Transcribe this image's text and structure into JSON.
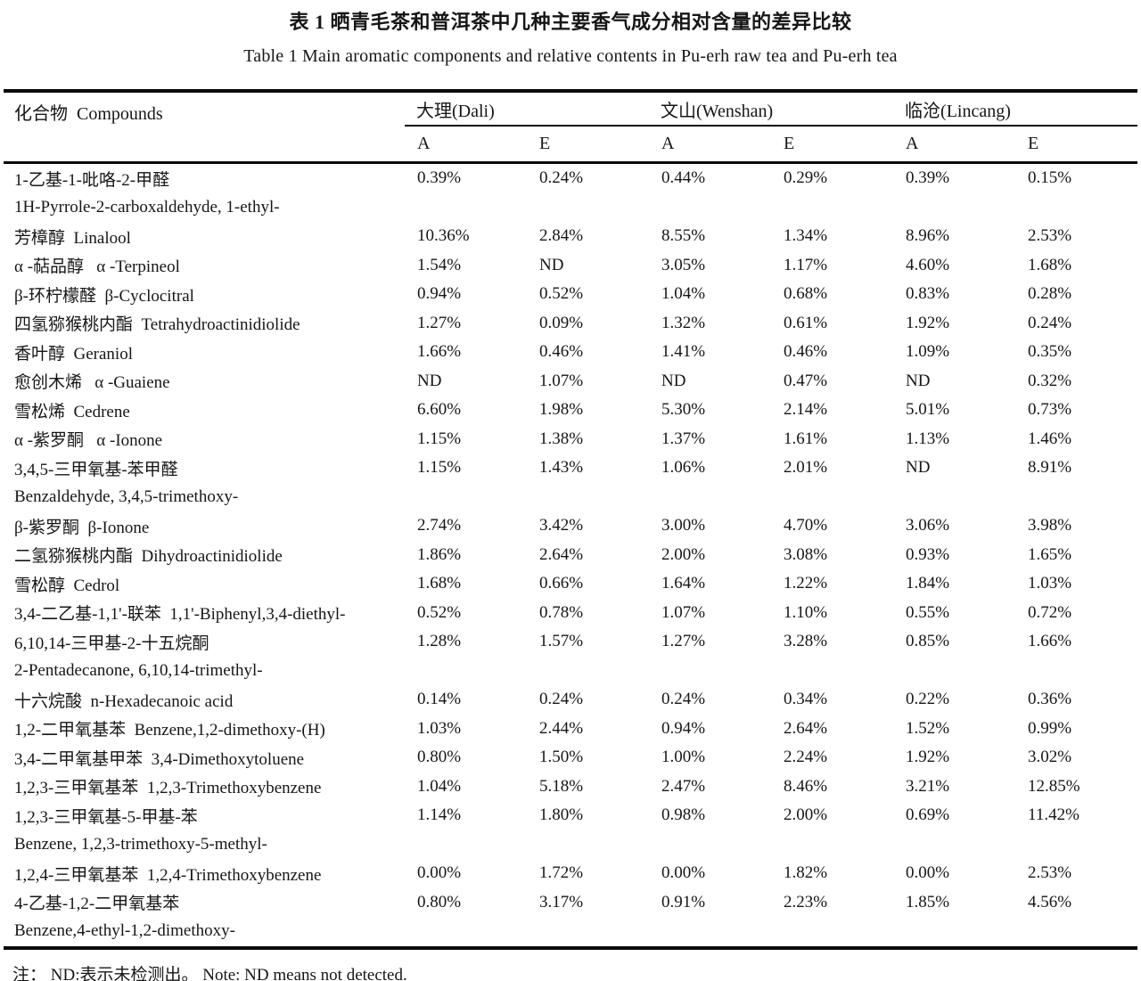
{
  "caption_zh": "表 1  晒青毛茶和普洱茶中几种主要香气成分相对含量的差异比较",
  "caption_en": "Table 1 Main aromatic components and relative contents in Pu-erh raw tea and Pu-erh tea",
  "table": {
    "compound_header": "化合物  Compounds",
    "region_groups": [
      "大理(Dali)",
      "文山(Wenshan)",
      "临沧(Lincang)"
    ],
    "subcolumns": [
      "A",
      "E",
      "A",
      "E",
      "A",
      "E"
    ],
    "rows": [
      {
        "name": "1-乙基-1-吡咯-2-甲醛",
        "values": [
          "0.39%",
          "0.24%",
          "0.44%",
          "0.29%",
          "0.39%",
          "0.15%"
        ]
      },
      {
        "name": "1H-Pyrrole-2-carboxaldehyde, 1-ethyl-",
        "values": []
      },
      {
        "name": "芳樟醇  Linalool",
        "values": [
          "10.36%",
          "2.84%",
          "8.55%",
          "1.34%",
          "8.96%",
          "2.53%"
        ]
      },
      {
        "name": "α -萜品醇   α -Terpineol",
        "values": [
          "1.54%",
          "ND",
          "3.05%",
          "1.17%",
          "4.60%",
          "1.68%"
        ]
      },
      {
        "name": "β-环柠檬醛  β-Cyclocitral",
        "values": [
          "0.94%",
          "0.52%",
          "1.04%",
          "0.68%",
          "0.83%",
          "0.28%"
        ]
      },
      {
        "name": "四氢猕猴桃内酯  Tetrahydroactinidiolide",
        "values": [
          "1.27%",
          "0.09%",
          "1.32%",
          "0.61%",
          "1.92%",
          "0.24%"
        ]
      },
      {
        "name": "香叶醇  Geraniol",
        "values": [
          "1.66%",
          "0.46%",
          "1.41%",
          "0.46%",
          "1.09%",
          "0.35%"
        ]
      },
      {
        "name": "愈创木烯   α -Guaiene",
        "values": [
          "ND",
          "1.07%",
          "ND",
          "0.47%",
          "ND",
          "0.32%"
        ]
      },
      {
        "name": "雪松烯  Cedrene",
        "values": [
          "6.60%",
          "1.98%",
          "5.30%",
          "2.14%",
          "5.01%",
          "0.73%"
        ]
      },
      {
        "name": "α -紫罗酮   α -Ionone",
        "values": [
          "1.15%",
          "1.38%",
          "1.37%",
          "1.61%",
          "1.13%",
          "1.46%"
        ]
      },
      {
        "name": "3,4,5-三甲氧基-苯甲醛",
        "values": [
          "1.15%",
          "1.43%",
          "1.06%",
          "2.01%",
          "ND",
          "8.91%"
        ]
      },
      {
        "name": "Benzaldehyde, 3,4,5-trimethoxy-",
        "values": []
      },
      {
        "name": "β-紫罗酮  β-Ionone",
        "values": [
          "2.74%",
          "3.42%",
          "3.00%",
          "4.70%",
          "3.06%",
          "3.98%"
        ]
      },
      {
        "name": "二氢猕猴桃内酯  Dihydroactinidiolide",
        "values": [
          "1.86%",
          "2.64%",
          "2.00%",
          "3.08%",
          "0.93%",
          "1.65%"
        ]
      },
      {
        "name": "雪松醇  Cedrol",
        "values": [
          "1.68%",
          "0.66%",
          "1.64%",
          "1.22%",
          "1.84%",
          "1.03%"
        ]
      },
      {
        "name": "3,4-二乙基-1,1'-联苯  1,1'-Biphenyl,3,4-diethyl-",
        "values": [
          "0.52%",
          "0.78%",
          "1.07%",
          "1.10%",
          "0.55%",
          "0.72%"
        ]
      },
      {
        "name": "6,10,14-三甲基-2-十五烷酮",
        "values": [
          "1.28%",
          "1.57%",
          "1.27%",
          "3.28%",
          "0.85%",
          "1.66%"
        ]
      },
      {
        "name": "2-Pentadecanone, 6,10,14-trimethyl-",
        "values": []
      },
      {
        "name": "十六烷酸  n-Hexadecanoic acid",
        "values": [
          "0.14%",
          "0.24%",
          "0.24%",
          "0.34%",
          "0.22%",
          "0.36%"
        ]
      },
      {
        "name": "1,2-二甲氧基苯  Benzene,1,2-dimethoxy-(H)",
        "values": [
          "1.03%",
          "2.44%",
          "0.94%",
          "2.64%",
          "1.52%",
          "0.99%"
        ]
      },
      {
        "name": "3,4-二甲氧基甲苯  3,4-Dimethoxytoluene",
        "values": [
          "0.80%",
          "1.50%",
          "1.00%",
          "2.24%",
          "1.92%",
          "3.02%"
        ]
      },
      {
        "name": "1,2,3-三甲氧基苯  1,2,3-Trimethoxybenzene",
        "values": [
          "1.04%",
          "5.18%",
          "2.47%",
          "8.46%",
          "3.21%",
          "12.85%"
        ]
      },
      {
        "name": "1,2,3-三甲氧基-5-甲基-苯",
        "values": [
          "1.14%",
          "1.80%",
          "0.98%",
          "2.00%",
          "0.69%",
          "11.42%"
        ]
      },
      {
        "name": "Benzene, 1,2,3-trimethoxy-5-methyl-",
        "values": []
      },
      {
        "name": "1,2,4-三甲氧基苯  1,2,4-Trimethoxybenzene",
        "values": [
          "0.00%",
          "1.72%",
          "0.00%",
          "1.82%",
          "0.00%",
          "2.53%"
        ]
      },
      {
        "name": "4-乙基-1,2-二甲氧基苯",
        "values": [
          "0.80%",
          "3.17%",
          "0.91%",
          "2.23%",
          "1.85%",
          "4.56%"
        ]
      },
      {
        "name": "Benzene,4-ethyl-1,2-dimethoxy-",
        "values": []
      }
    ]
  },
  "footnote": "注： ND:表示未检测出。 Note: ND means not detected."
}
